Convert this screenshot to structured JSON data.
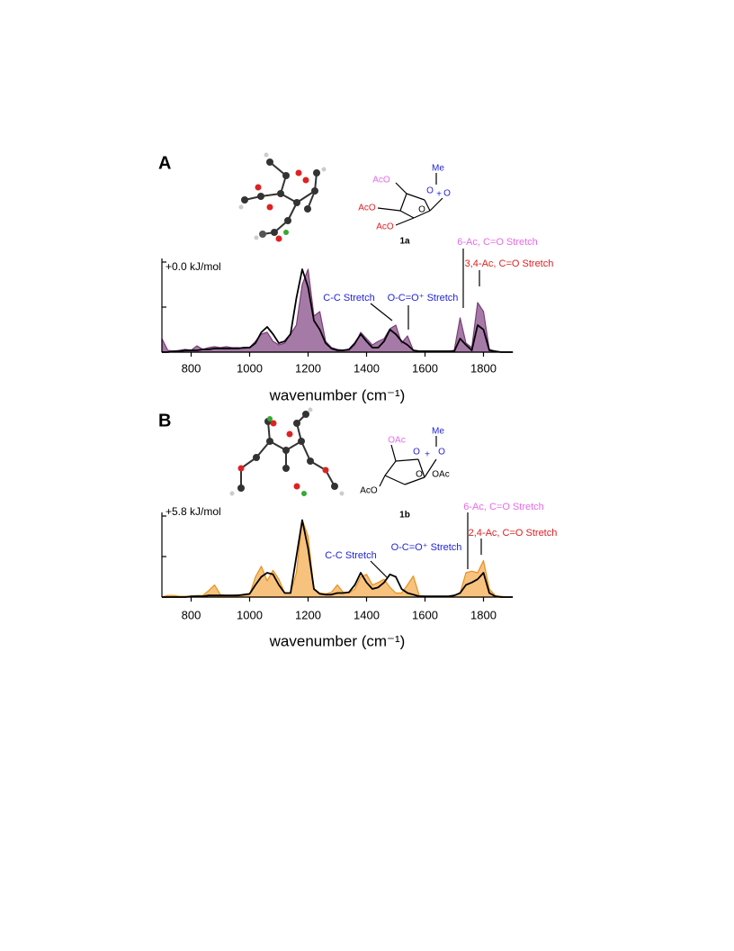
{
  "chart_data": [
    {
      "type": "line",
      "panel_label": "A",
      "energy_label": "+0.0 kJ/mol",
      "x_label": "wavenumber (cm⁻¹)",
      "xlim": [
        700,
        1900
      ],
      "xticks": [
        800,
        1000,
        1200,
        1400,
        1600,
        1800
      ],
      "ylim": [
        0,
        1
      ],
      "yticks": [
        0,
        0.5,
        1
      ],
      "grid": false,
      "annotations": [
        "C-C Stretch",
        "O-C=O⁺ Stretch",
        "6-Ac, C=O Stretch",
        "3,4-Ac, C=O Stretch"
      ],
      "structure": {
        "label": "1a",
        "groups": [
          "Me",
          "AcO",
          "O",
          "+",
          "O",
          "AcO",
          "O",
          "AcO"
        ]
      },
      "x": [
        700,
        720,
        740,
        760,
        780,
        800,
        820,
        840,
        860,
        880,
        900,
        920,
        940,
        960,
        980,
        1000,
        1020,
        1040,
        1060,
        1080,
        1100,
        1120,
        1140,
        1160,
        1180,
        1200,
        1220,
        1240,
        1260,
        1280,
        1300,
        1320,
        1340,
        1360,
        1380,
        1400,
        1420,
        1440,
        1460,
        1480,
        1500,
        1520,
        1540,
        1560,
        1580,
        1600,
        1620,
        1640,
        1660,
        1680,
        1700,
        1720,
        1740,
        1760,
        1780,
        1800,
        1820,
        1840,
        1860,
        1880,
        1900
      ],
      "series": [
        {
          "color": "#a67aa6",
          "edge_color": "#7a3f7a",
          "fill": true,
          "values": [
            0.15,
            0.02,
            0.01,
            0.02,
            0.03,
            0.02,
            0.07,
            0.03,
            0.05,
            0.06,
            0.05,
            0.06,
            0.05,
            0.05,
            0.04,
            0.05,
            0.12,
            0.2,
            0.22,
            0.12,
            0.08,
            0.1,
            0.2,
            0.3,
            0.75,
            0.92,
            0.4,
            0.45,
            0.12,
            0.05,
            0.03,
            0.02,
            0.02,
            0.08,
            0.22,
            0.15,
            0.08,
            0.12,
            0.15,
            0.26,
            0.3,
            0.1,
            0.18,
            0.02,
            0.01,
            0.01,
            0.01,
            0.01,
            0.01,
            0.01,
            0.02,
            0.38,
            0.1,
            0.05,
            0.55,
            0.45,
            0.03,
            0.01,
            0,
            0,
            0
          ]
        },
        {
          "color": "#000000",
          "fill": false,
          "values": [
            0,
            0,
            0.01,
            0.01,
            0.02,
            0.02,
            0.02,
            0.03,
            0.03,
            0.04,
            0.04,
            0.04,
            0.04,
            0.04,
            0.05,
            0.05,
            0.1,
            0.22,
            0.28,
            0.2,
            0.1,
            0.12,
            0.2,
            0.6,
            0.92,
            0.72,
            0.35,
            0.25,
            0.1,
            0.04,
            0.02,
            0.02,
            0.03,
            0.1,
            0.2,
            0.12,
            0.05,
            0.05,
            0.12,
            0.25,
            0.2,
            0.12,
            0.08,
            0.02,
            0.01,
            0.01,
            0.01,
            0.01,
            0.01,
            0.01,
            0.01,
            0.15,
            0.08,
            0.02,
            0.3,
            0.25,
            0.02,
            0.01,
            0,
            0,
            0
          ]
        }
      ]
    },
    {
      "type": "line",
      "panel_label": "B",
      "energy_label": "+5.8 kJ/mol",
      "x_label": "wavenumber (cm⁻¹)",
      "xlim": [
        700,
        1900
      ],
      "xticks": [
        800,
        1000,
        1200,
        1400,
        1600,
        1800
      ],
      "ylim": [
        0,
        1
      ],
      "yticks": [
        0,
        0.5,
        1
      ],
      "grid": false,
      "annotations": [
        "C-C Stretch",
        "O-C=O⁺ Stretch",
        "6-Ac, C=O Stretch",
        "2,4-Ac, C=O Stretch"
      ],
      "structure": {
        "label": "1b",
        "groups": [
          "Me",
          "OAc",
          "O",
          "+",
          "O",
          "O",
          "OAc",
          "AcO"
        ]
      },
      "x": [
        700,
        720,
        740,
        760,
        780,
        800,
        820,
        840,
        860,
        880,
        900,
        920,
        940,
        960,
        980,
        1000,
        1020,
        1040,
        1060,
        1080,
        1100,
        1120,
        1140,
        1160,
        1180,
        1200,
        1220,
        1240,
        1260,
        1280,
        1300,
        1320,
        1340,
        1360,
        1380,
        1400,
        1420,
        1440,
        1460,
        1480,
        1500,
        1520,
        1540,
        1560,
        1580,
        1600,
        1620,
        1640,
        1660,
        1680,
        1700,
        1720,
        1740,
        1760,
        1780,
        1800,
        1820,
        1840,
        1860,
        1880,
        1900
      ],
      "series": [
        {
          "color": "#f7c27e",
          "edge_color": "#e8901e",
          "fill": true,
          "values": [
            0,
            0.02,
            0.02,
            0.01,
            0.01,
            0.01,
            0.02,
            0.02,
            0.08,
            0.15,
            0.03,
            0.02,
            0.02,
            0.03,
            0.02,
            0.03,
            0.25,
            0.38,
            0.2,
            0.33,
            0.22,
            0.05,
            0.05,
            0.3,
            0.95,
            0.75,
            0.1,
            0.05,
            0.04,
            0.06,
            0.15,
            0.06,
            0.05,
            0.1,
            0.25,
            0.28,
            0.15,
            0.18,
            0.22,
            0.12,
            0.05,
            0.05,
            0.15,
            0.26,
            0.02,
            0.01,
            0.01,
            0.01,
            0.01,
            0.01,
            0.02,
            0.05,
            0.3,
            0.32,
            0.3,
            0.45,
            0.1,
            0.02,
            0.01,
            0,
            0
          ]
        },
        {
          "color": "#000000",
          "fill": false,
          "values": [
            0,
            0,
            0,
            0,
            0,
            0.01,
            0.01,
            0.01,
            0.02,
            0.02,
            0.02,
            0.02,
            0.02,
            0.02,
            0.03,
            0.04,
            0.15,
            0.25,
            0.3,
            0.28,
            0.15,
            0.05,
            0.05,
            0.5,
            0.95,
            0.6,
            0.1,
            0.04,
            0.03,
            0.03,
            0.05,
            0.05,
            0.06,
            0.15,
            0.3,
            0.18,
            0.1,
            0.12,
            0.18,
            0.28,
            0.25,
            0.1,
            0.05,
            0.03,
            0.01,
            0.01,
            0.01,
            0.01,
            0.01,
            0.01,
            0.02,
            0.05,
            0.15,
            0.18,
            0.22,
            0.3,
            0.05,
            0.01,
            0,
            0,
            0
          ]
        }
      ]
    }
  ]
}
